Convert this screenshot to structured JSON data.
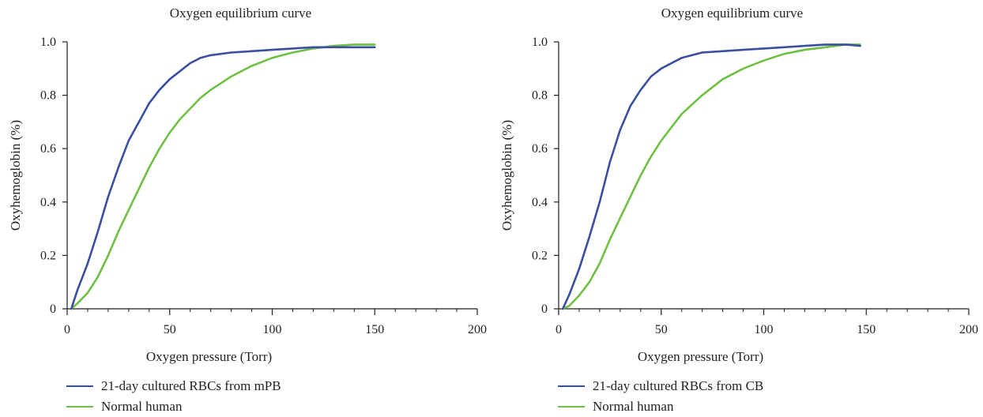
{
  "chart_data": [
    {
      "type": "line",
      "title": "Oxygen equilibrium curve",
      "xlabel": "Oxygen pressure (Torr)",
      "ylabel": "Oxyhemoglobin (%)",
      "xlim": [
        0,
        200
      ],
      "ylim": [
        0,
        1.0
      ],
      "xticks": [
        0,
        50,
        100,
        150,
        200
      ],
      "yticks": [
        0,
        0.2,
        0.4,
        0.6,
        0.8,
        1.0
      ],
      "ytick_labels": [
        "0",
        "0.2",
        "0.4",
        "0.6",
        "0.8",
        "1.0"
      ],
      "legend_position": "bottom-left",
      "series": [
        {
          "name": "21-day cultured RBCs from mPB",
          "color": "#3a4fa0",
          "x": [
            2,
            5,
            10,
            15,
            20,
            25,
            30,
            35,
            40,
            45,
            50,
            55,
            60,
            65,
            70,
            80,
            90,
            100,
            110,
            120,
            130,
            140,
            150
          ],
          "y": [
            0.0,
            0.07,
            0.17,
            0.29,
            0.42,
            0.53,
            0.63,
            0.7,
            0.77,
            0.82,
            0.86,
            0.89,
            0.92,
            0.94,
            0.95,
            0.96,
            0.965,
            0.97,
            0.975,
            0.98,
            0.98,
            0.98,
            0.98
          ]
        },
        {
          "name": "Normal human",
          "color": "#6fbf44",
          "x": [
            2,
            5,
            10,
            15,
            20,
            25,
            30,
            35,
            40,
            45,
            50,
            55,
            60,
            65,
            70,
            80,
            90,
            100,
            110,
            120,
            130,
            140,
            150
          ],
          "y": [
            0.0,
            0.02,
            0.06,
            0.12,
            0.2,
            0.29,
            0.37,
            0.45,
            0.53,
            0.6,
            0.66,
            0.71,
            0.75,
            0.79,
            0.82,
            0.87,
            0.91,
            0.94,
            0.96,
            0.975,
            0.985,
            0.99,
            0.99
          ]
        }
      ]
    },
    {
      "type": "line",
      "title": "Oxygen equilibrium curve",
      "xlabel": "Oxygen pressure (Torr)",
      "ylabel": "Oxyhemoglobin (%)",
      "xlim": [
        0,
        200
      ],
      "ylim": [
        0,
        1.0
      ],
      "xticks": [
        0,
        50,
        100,
        150,
        200
      ],
      "yticks": [
        0,
        0.2,
        0.4,
        0.6,
        0.8,
        1.0
      ],
      "ytick_labels": [
        "0",
        "0.2",
        "0.4",
        "0.6",
        "0.8",
        "1.0"
      ],
      "legend_position": "bottom-left",
      "series": [
        {
          "name": "21-day cultured RBCs from CB",
          "color": "#3a4fa0",
          "x": [
            2,
            5,
            10,
            15,
            20,
            25,
            30,
            35,
            40,
            45,
            50,
            55,
            60,
            70,
            80,
            90,
            100,
            110,
            120,
            130,
            140,
            147
          ],
          "y": [
            0.0,
            0.05,
            0.15,
            0.27,
            0.4,
            0.55,
            0.67,
            0.76,
            0.82,
            0.87,
            0.9,
            0.92,
            0.94,
            0.96,
            0.965,
            0.97,
            0.975,
            0.98,
            0.985,
            0.99,
            0.99,
            0.985
          ]
        },
        {
          "name": "Normal human",
          "color": "#6fbf44",
          "x": [
            2,
            5,
            10,
            15,
            20,
            25,
            30,
            35,
            40,
            45,
            50,
            55,
            60,
            70,
            80,
            90,
            100,
            110,
            120,
            130,
            140,
            147
          ],
          "y": [
            0.0,
            0.01,
            0.05,
            0.1,
            0.17,
            0.26,
            0.34,
            0.42,
            0.5,
            0.57,
            0.63,
            0.68,
            0.73,
            0.8,
            0.86,
            0.9,
            0.93,
            0.955,
            0.97,
            0.98,
            0.99,
            0.99
          ]
        }
      ]
    }
  ]
}
